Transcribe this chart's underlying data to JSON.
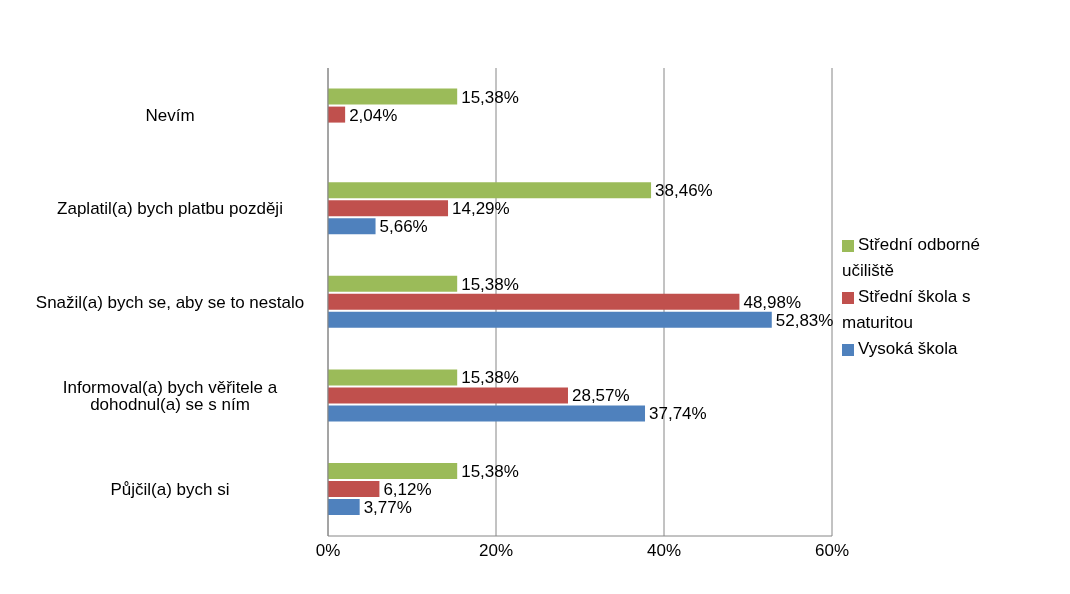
{
  "chart_data": {
    "type": "bar",
    "orientation": "horizontal",
    "categories": [
      "Nevím",
      "Zaplatil(a) bych  platbu později",
      "Snažil(a) bych se, aby se to nestalo",
      "Informoval(a) bych věřitele a dohodnul(a) se s ním",
      "Půjčil(a) bych si"
    ],
    "series": [
      {
        "name": "Střední odborné učiliště",
        "color": "#9bbb59",
        "values": [
          15.38,
          38.46,
          15.38,
          15.38,
          15.38
        ],
        "value_labels": [
          "15,38%",
          "38,46%",
          "15,38%",
          "15,38%",
          "15,38%"
        ]
      },
      {
        "name": "Střední škola s maturitou",
        "color": "#c0504d",
        "values": [
          2.04,
          14.29,
          48.98,
          28.57,
          6.12
        ],
        "value_labels": [
          "2,04%",
          "14,29%",
          "48,98%",
          "28,57%",
          "6,12%"
        ]
      },
      {
        "name": "Vysoká škola",
        "color": "#4f81bd",
        "values": [
          null,
          5.66,
          52.83,
          37.74,
          3.77
        ],
        "value_labels": [
          null,
          "5,66%",
          "52,83%",
          "37,74%",
          "3,77%"
        ]
      }
    ],
    "xlim": [
      0,
      60
    ],
    "xticks": [
      {
        "value": 0,
        "label": "0%"
      },
      {
        "value": 20,
        "label": "20%"
      },
      {
        "value": 40,
        "label": "40%"
      },
      {
        "value": 60,
        "label": "60%"
      }
    ],
    "grid": "x",
    "legend": "right"
  }
}
